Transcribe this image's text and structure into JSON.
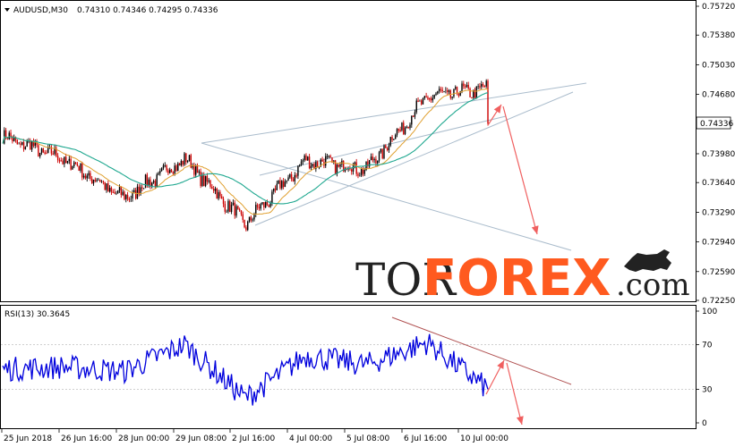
{
  "header": {
    "symbol_timeframe": "AUDUSD,M30",
    "ohlc": "0.74310 0.74346 0.74295 0.74336",
    "rsi_label": "RSI(13) 30.3645"
  },
  "price_panel": {
    "current_price_label": "0.74336",
    "y_ticks": [
      "0.75720",
      "0.75380",
      "0.75030",
      "0.74680",
      "0.74336",
      "0.73980",
      "0.73640",
      "0.73290",
      "0.72940",
      "0.72590",
      "0.72250"
    ]
  },
  "rsi_panel": {
    "y_ticks": [
      "100",
      "70",
      "30",
      "0"
    ]
  },
  "x_axis": {
    "labels": [
      "25 Jun 2018",
      "26 Jun 16:00",
      "28 Jun 00:00",
      "29 Jun 08:00",
      "2 Jul 16:00",
      "4 Jul 00:00",
      "5 Jul 08:00",
      "6 Jul 16:00",
      "10 Jul 00:00"
    ]
  },
  "watermark": {
    "text_left": "TOR",
    "text_right": "FOREX",
    "text_suffix": ".com"
  },
  "colors": {
    "candle_up": "#000000",
    "candle_down": "#cc0000",
    "ma_fast": "#e0a030",
    "ma_slow": "#20a890",
    "rsi_line": "#0000dd",
    "trend_lines": "#aabccc",
    "arrows": "#f06060",
    "rsi_trend": "#b05050",
    "watermark_dark": "#222222",
    "watermark_accent": "#ff5a1f"
  },
  "chart_data": [
    {
      "type": "line",
      "title": "AUDUSD,M30",
      "series": [
        {
          "name": "",
          "x": [
            "25 Jun 2018",
            "26 Jun 16:00",
            "28 Jun 00:00",
            "29 Jun 08:00",
            "2 Jul 16:00",
            "4 Jul 00:00",
            "5 Jul 08:00",
            "6 Jul 16:00",
            "10 Jul 00:00"
          ],
          "values": [
            0.7418,
            0.7392,
            0.7345,
            0.7392,
            0.7315,
            0.739,
            0.738,
            0.7465,
            0.7475
          ]
        }
      ],
      "ylim": [
        0.7225,
        0.7572
      ],
      "current_value": 0.74336
    },
    {
      "type": "line",
      "title": "RSI(13) 30.3645",
      "series": [
        {
          "name": "RSI(13)",
          "x": [
            "25 Jun 2018",
            "26 Jun 16:00",
            "28 Jun 00:00",
            "29 Jun 08:00",
            "2 Jul 16:00",
            "4 Jul 00:00",
            "5 Jul 08:00",
            "6 Jul 16:00",
            "10 Jul 00:00"
          ],
          "values": [
            48,
            50,
            46,
            70,
            22,
            60,
            52,
            72,
            30
          ]
        }
      ],
      "ylim": [
        0,
        100
      ],
      "levels": [
        30,
        70
      ]
    }
  ]
}
